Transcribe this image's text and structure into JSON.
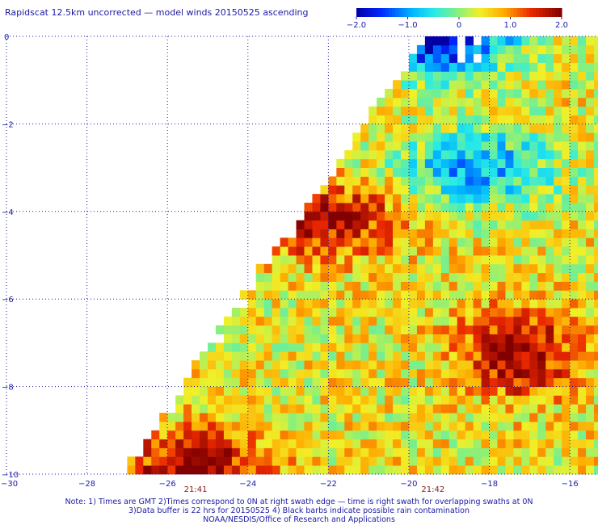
{
  "title": "Rapidscat 12.5km uncorrected — model winds 20150525 ascending",
  "colorbar": {
    "labels": [
      "−2.0",
      "−1.0",
      "0",
      "1.0",
      "2.0"
    ],
    "values": [
      -2.0,
      -1.0,
      0,
      1.0,
      2.0
    ]
  },
  "chart_data": {
    "type": "heatmap",
    "title": "Rapidscat 12.5km uncorrected — model winds 20150525 ascending",
    "xlabel": "",
    "ylabel": "",
    "xlim": [
      -30,
      -15.3
    ],
    "ylim": [
      -10,
      0
    ],
    "x_ticks": [
      -30,
      -28,
      -26,
      -24,
      -22,
      -20,
      -18,
      -16
    ],
    "x_tick_labels": [
      "−30",
      "−28",
      "−26",
      "−24",
      "−22",
      "−20",
      "−18",
      "−16"
    ],
    "y_ticks": [
      0,
      -2,
      -4,
      -6,
      -8,
      -10
    ],
    "y_tick_labels": [
      "0",
      "−2",
      "−4",
      "−6",
      "−8",
      "−10"
    ],
    "value_range": [
      -2.0,
      2.0
    ],
    "grid": true,
    "swath_times": [
      {
        "label": "21:41",
        "lon": -25.3
      },
      {
        "label": "21:42",
        "lon": -19.4
      }
    ],
    "cell_size_deg": 0.2,
    "swath": {
      "left_edge": [
        [
          -27.1,
          -10
        ],
        [
          -19.6,
          0
        ]
      ],
      "right_edge_lon": -15.3
    },
    "features": [
      {
        "desc": "strong positive core",
        "center": [
          -17.3,
          -7.2
        ],
        "peak": 2.0
      },
      {
        "desc": "positive band along swath edge",
        "center": [
          -22.0,
          -4.2
        ],
        "peak": 1.8
      },
      {
        "desc": "positive area",
        "center": [
          -25.3,
          -9.8
        ],
        "peak": 1.9
      },
      {
        "desc": "negative area",
        "center": [
          -19.3,
          0.0
        ],
        "peak": -2.0
      },
      {
        "desc": "negative area",
        "center": [
          -18.3,
          -3.0
        ],
        "peak": -1.0
      }
    ]
  },
  "notes": [
    "Note: 1) Times are GMT 2)Times correspond to 0N at right swath edge — time is right swath for overlapping swaths at 0N",
    "3)Data buffer is 22 hrs for 20150525 4) Black barbs indicate possible rain contamination",
    "NOAA/NESDIS/Office of Research and Applications"
  ]
}
